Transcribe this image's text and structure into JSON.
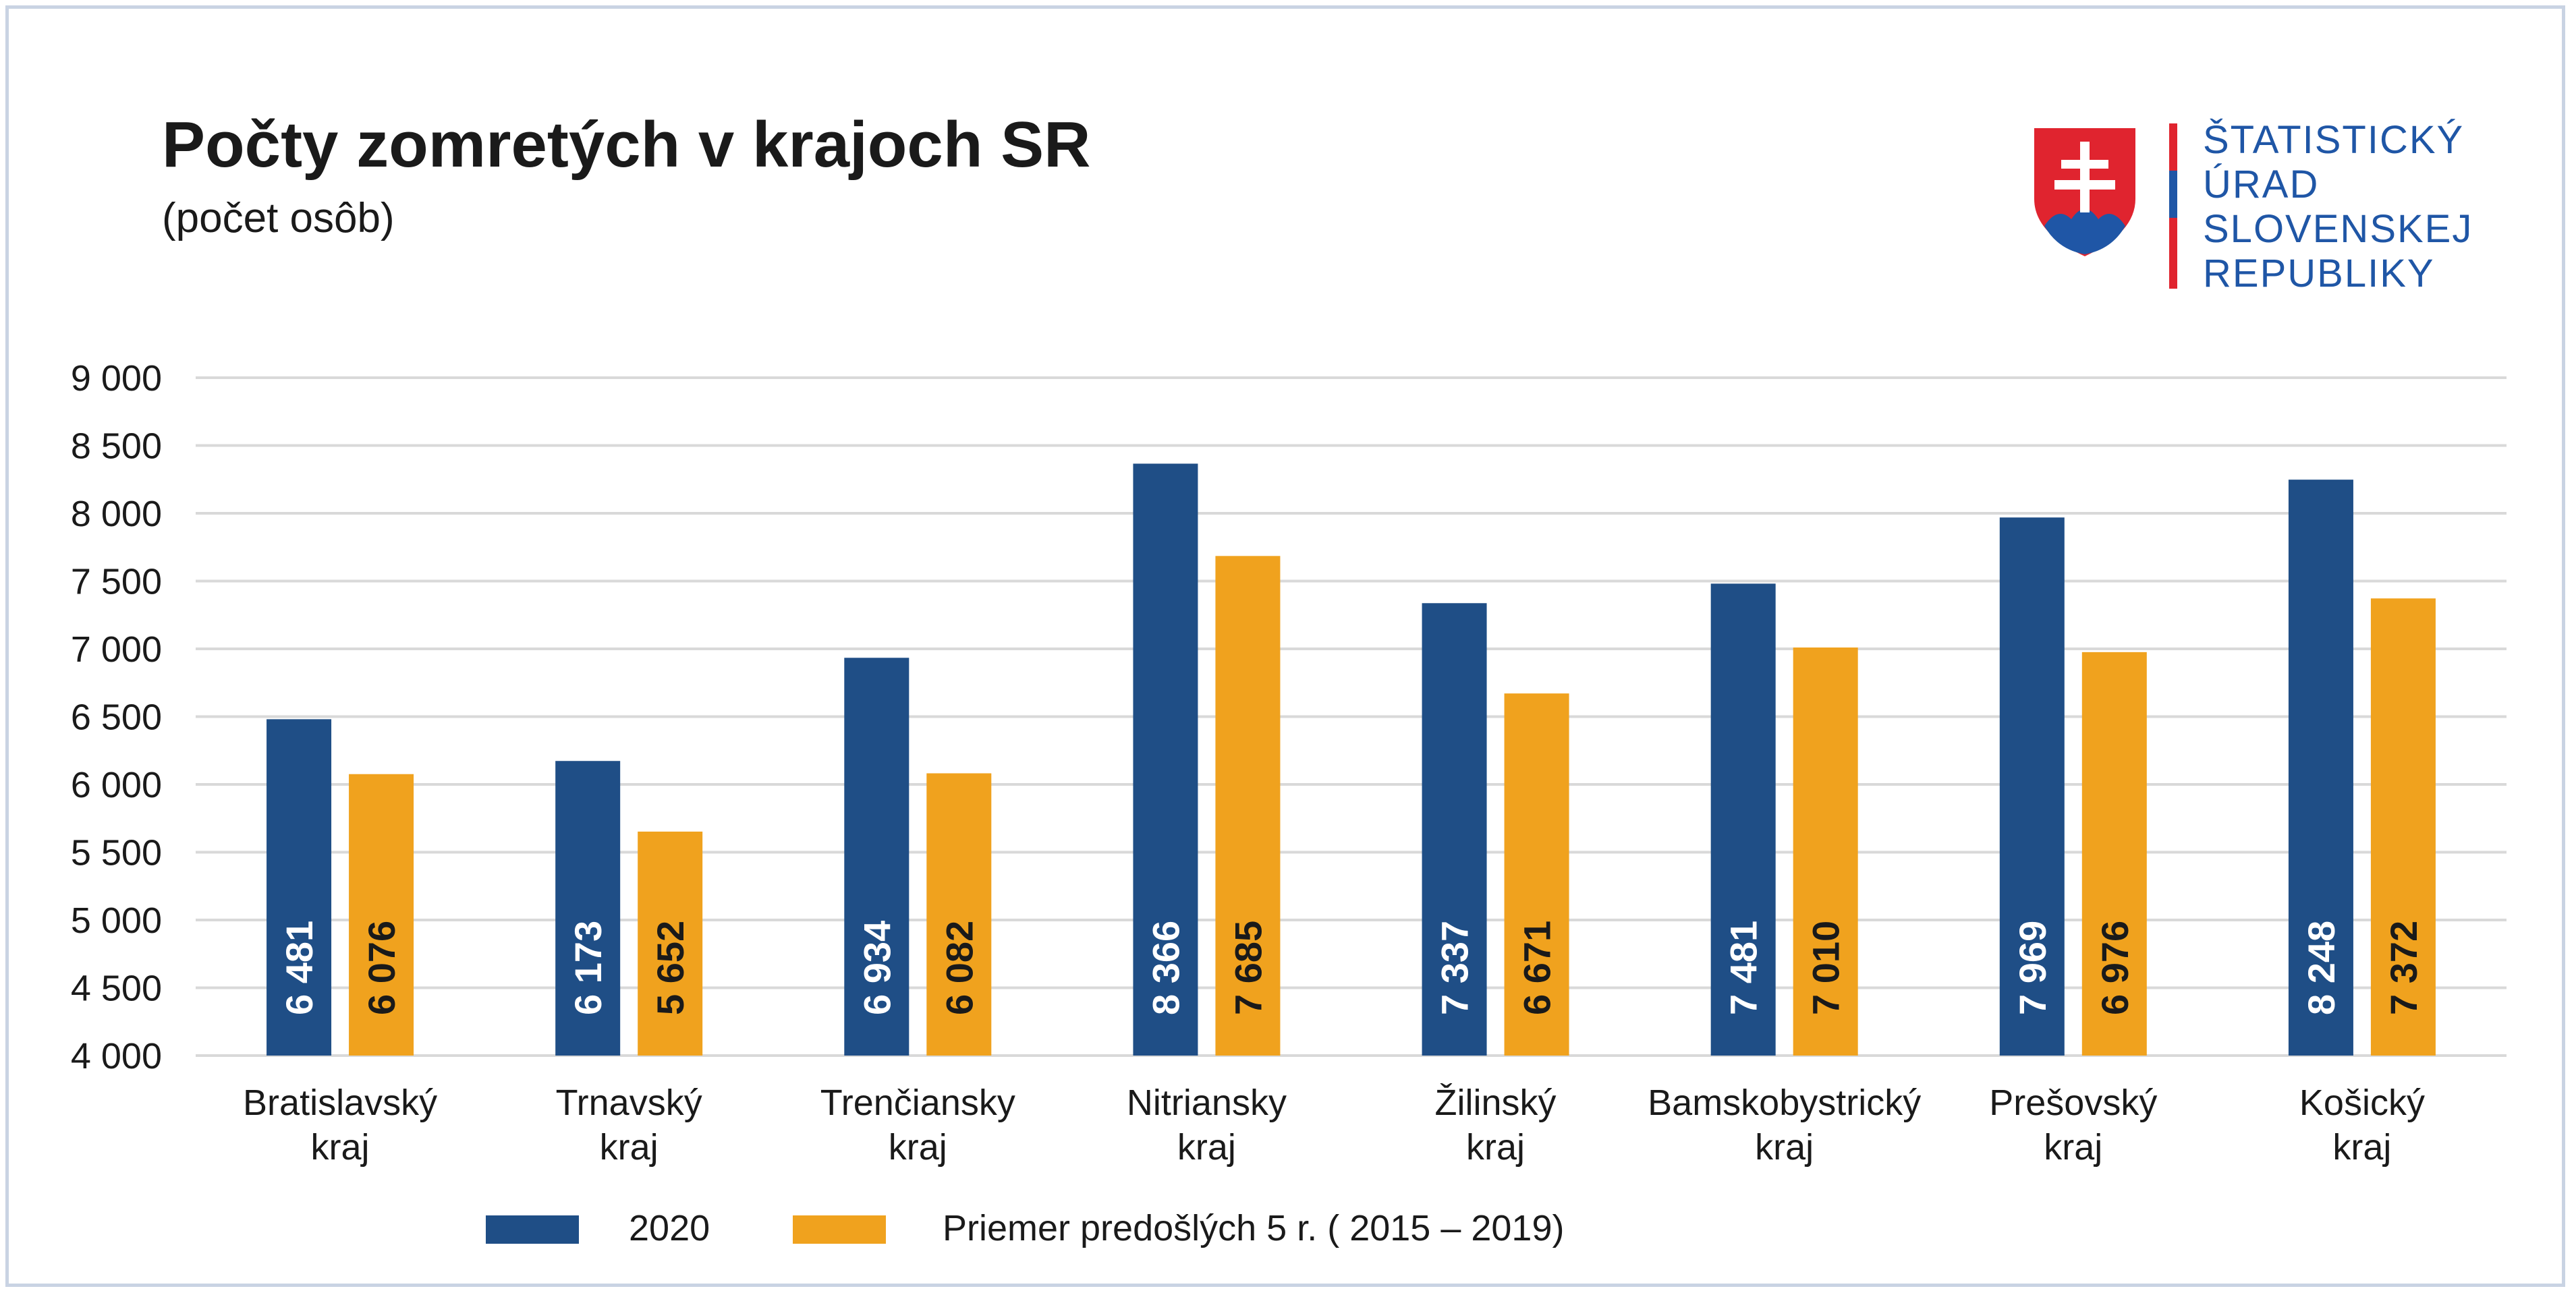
{
  "header": {
    "title": "Počty zomretých v krajoch SR",
    "subtitle": "(počet osôb)"
  },
  "logo": {
    "icon": "slovak-coat-of-arms-icon",
    "lines": [
      "ŠTATISTICKÝ",
      "ÚRAD",
      "SLOVENSKEJ",
      "REPUBLIKY"
    ],
    "text_color": "#1f56a6"
  },
  "chart_data": {
    "type": "bar",
    "title": "Počty zomretých v krajoch SR",
    "subtitle": "(počet osôb)",
    "xlabel": "",
    "ylabel": "",
    "ylim": [
      4000,
      9000
    ],
    "yticks": [
      4000,
      4500,
      5000,
      5500,
      6000,
      6500,
      7000,
      7500,
      8000,
      8500,
      9000
    ],
    "ytick_labels": [
      "4 000",
      "4 500",
      "5 000",
      "5 500",
      "6 000",
      "6 500",
      "7 000",
      "7 500",
      "8 000",
      "8 500",
      "9 000"
    ],
    "grid": true,
    "legend_position": "bottom",
    "categories": [
      [
        "Bratislavský",
        "kraj"
      ],
      [
        "Trnavský",
        "kraj"
      ],
      [
        "Trenčiansky",
        "kraj"
      ],
      [
        "Nitriansky",
        "kraj"
      ],
      [
        "Žilinský",
        "kraj"
      ],
      [
        "Bamskobystrický",
        "kraj"
      ],
      [
        "Prešovský",
        "kraj"
      ],
      [
        "Košický",
        "kraj"
      ]
    ],
    "series": [
      {
        "name": "2020",
        "color": "#1f4e86",
        "label_color": "#ffffff",
        "values": [
          6481,
          6173,
          6934,
          8366,
          7337,
          7481,
          7969,
          8248
        ],
        "labels": [
          "6 481",
          "6 173",
          "6 934",
          "8 366",
          "7 337",
          "7 481",
          "7 969",
          "8 248"
        ]
      },
      {
        "name": "Priemer predošlých 5 r. ( 2015 – 2019)",
        "color": "#f0a21e",
        "label_color": "#1a1a1a",
        "values": [
          6076,
          5652,
          6082,
          7685,
          6671,
          7010,
          6976,
          7372
        ],
        "labels": [
          "6 076",
          "5 652",
          "6 082",
          "7 685",
          "6 671",
          "7 010",
          "6 976",
          "7 372"
        ]
      }
    ]
  }
}
